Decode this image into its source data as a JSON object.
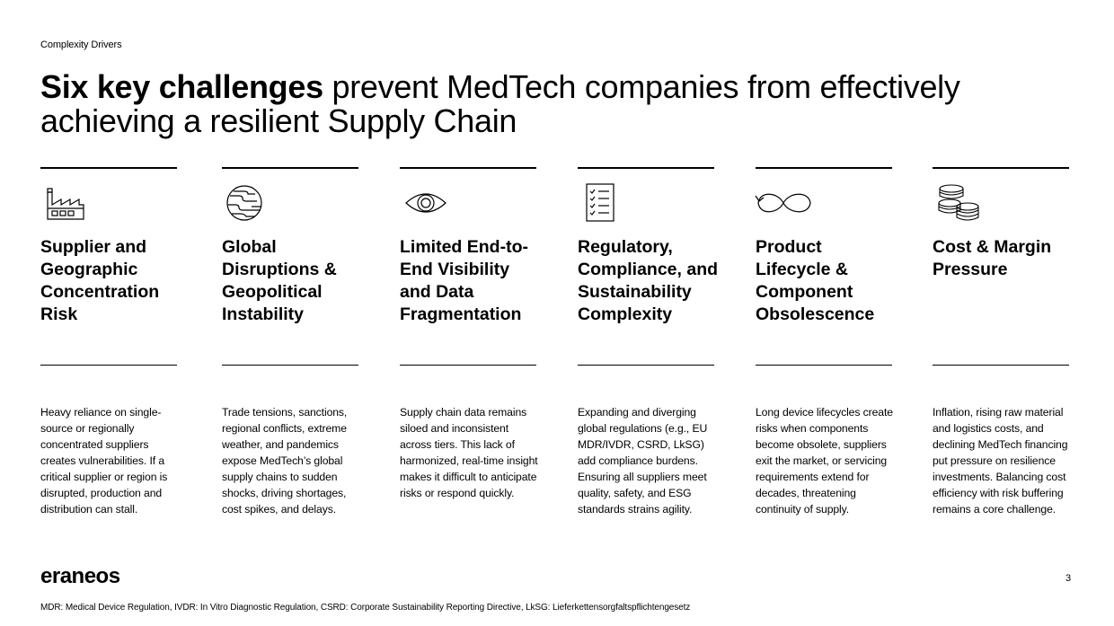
{
  "section_label": "Complexity Drivers",
  "headline": {
    "bold": "Six key challenges",
    "rest": " prevent MedTech companies from effectively achieving a resilient Supply Chain"
  },
  "columns": [
    {
      "icon": "factory-icon",
      "title": "Supplier and Geographic Concentration Risk",
      "description": "Heavy reliance on single-source or regionally concentrated suppliers creates vulnerabilities. If a critical supplier or region is disrupted, production and distribution can stall."
    },
    {
      "icon": "globe-icon",
      "title": "Global Disruptions & Geopolitical Instability",
      "description": "Trade tensions, sanctions, regional conflicts, extreme weather, and pandemics expose MedTech’s global supply chains to sudden shocks, driving shortages, cost spikes, and delays."
    },
    {
      "icon": "eye-icon",
      "title": "Limited End-to-End Visibility and Data Fragmentation",
      "description": "Supply chain data remains siloed and inconsistent across tiers. This lack of harmonized, real-time insight makes it difficult to anticipate risks or respond quickly."
    },
    {
      "icon": "checklist-icon",
      "title": "Regulatory, Compliance, and Sustainability Complexity",
      "description": "Expanding and diverging global regulations (e.g., EU MDR/IVDR, CSRD, LkSG) add compliance burdens. Ensuring all suppliers meet quality, safety, and ESG standards strains agility."
    },
    {
      "icon": "infinity-icon",
      "title": "Product Lifecycle & Component Obsolescence",
      "description": "Long device lifecycles create risks when components become obsolete, suppliers exit the market, or servicing requirements extend for decades, threatening continuity of supply."
    },
    {
      "icon": "coins-icon",
      "title": "Cost & Margin Pressure",
      "description": "Inflation, rising raw material and logistics costs, and declining MedTech financing put pressure on resilience investments. Balancing cost efficiency with risk buffering remains a core challenge."
    }
  ],
  "logo": "eraneos",
  "page_number": "3",
  "footnote": "MDR: Medical Device Regulation, IVDR: In Vitro Diagnostic Regulation, CSRD: Corporate Sustainability Reporting Directive,  LkSG: Lieferkettensorgfaltspflichtengesetz"
}
